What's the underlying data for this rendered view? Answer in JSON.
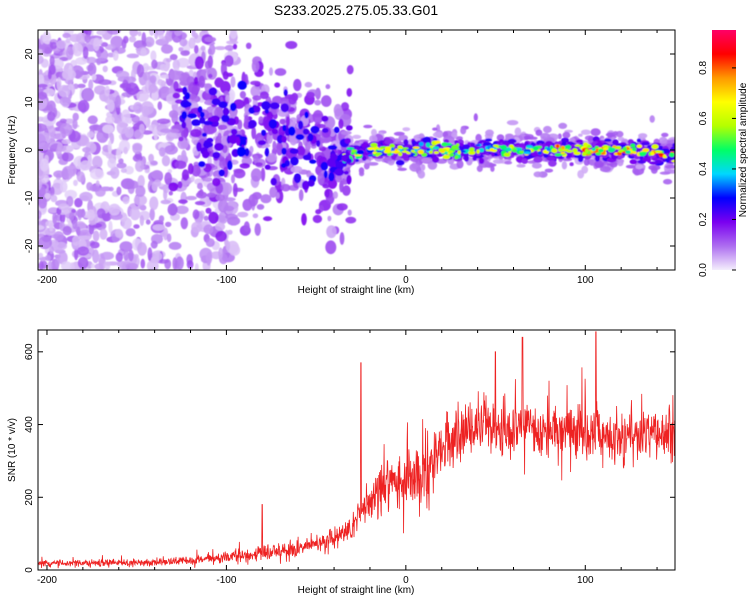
{
  "chart_data": [
    {
      "type": "heatmap",
      "title": "S233.2025.275.05.33.G01",
      "xlabel": "Height of straight line (km)",
      "ylabel": "Frequency (Hz)",
      "xlim": [
        -205,
        150
      ],
      "ylim": [
        -25,
        25
      ],
      "xticks": [
        -200,
        -100,
        0,
        100
      ],
      "yticks": [
        -20,
        -10,
        0,
        10,
        20
      ],
      "colorbar": {
        "label": "Normalized spectral amplitude",
        "range": [
          0.0,
          0.95
        ],
        "ticks": [
          0.0,
          0.2,
          0.4,
          0.6,
          0.8
        ],
        "colormap": "rainbow",
        "stops": [
          "#f4eefc",
          "#ad6df0",
          "#7a00f0",
          "#0000ff",
          "#00d7ff",
          "#00ff66",
          "#b4ff00",
          "#ffff00",
          "#ff9900",
          "#ff0000",
          "#ff0066"
        ]
      },
      "description_of_features": {
        "tone_center_frequency_hz": [
          [
            -125,
            8
          ],
          [
            -110,
            4
          ],
          [
            -95,
            3
          ],
          [
            -80,
            5
          ],
          [
            -65,
            2
          ],
          [
            -50,
            1
          ],
          [
            -40,
            -3
          ],
          [
            -30,
            -1
          ],
          [
            -20,
            0
          ],
          [
            0,
            0
          ],
          [
            20,
            0
          ],
          [
            50,
            0
          ],
          [
            80,
            0
          ],
          [
            100,
            0
          ],
          [
            120,
            0
          ],
          [
            145,
            -1
          ]
        ],
        "strong_signal_start_km": -35,
        "noise_region_km": [
          -205,
          -110
        ]
      }
    },
    {
      "type": "line",
      "xlabel": "Height of straight line (km)",
      "ylabel": "SNR (10 * v/v)",
      "xlim": [
        -205,
        150
      ],
      "ylim": [
        0,
        660
      ],
      "xticks": [
        -200,
        -100,
        0,
        100
      ],
      "yticks": [
        0,
        200,
        400,
        600
      ],
      "series": [
        {
          "name": "SNR",
          "color": "#ee2222",
          "envelope_mean": {
            "x": [
              -205,
              -150,
              -120,
              -100,
              -80,
              -60,
              -40,
              -30,
              -20,
              -10,
              0,
              10,
              20,
              30,
              40,
              60,
              80,
              100,
              120,
              150
            ],
            "y": [
              18,
              20,
              25,
              35,
              45,
              60,
              85,
              120,
              190,
              230,
              245,
              260,
              330,
              380,
              390,
              385,
              380,
              375,
              370,
              375
            ]
          },
          "spikes": [
            {
              "x": -80,
              "y": 180
            },
            {
              "x": -25,
              "y": 570
            },
            {
              "x": 65,
              "y": 640
            },
            {
              "x": 106,
              "y": 655
            },
            {
              "x": 50,
              "y": 600
            }
          ]
        }
      ]
    }
  ]
}
